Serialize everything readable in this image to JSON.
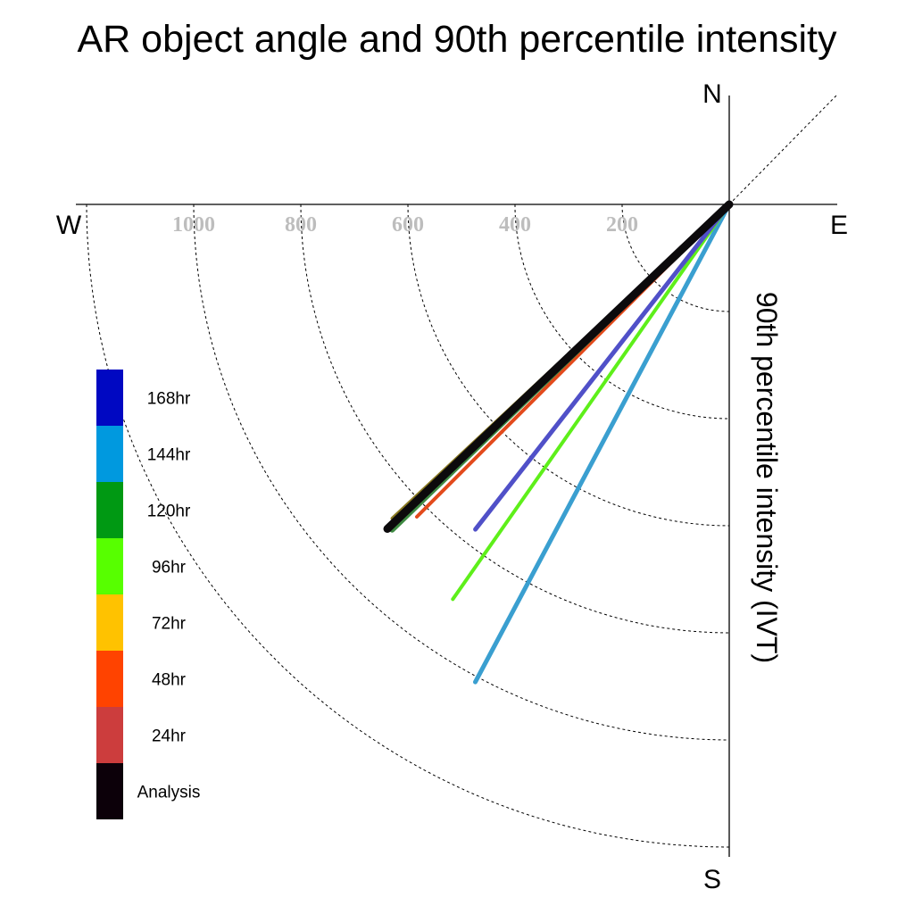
{
  "chart_data": {
    "type": "polar-vector",
    "title": "AR object angle and 90th percentile intensity",
    "ylabel": "90th percentile intensity (IVT)",
    "compass": {
      "north": "N",
      "south": "S",
      "east": "E",
      "west": "W"
    },
    "radial_ticks": [
      200,
      400,
      600,
      800,
      1000
    ],
    "radial_tick_labels": [
      "200",
      "400",
      "600",
      "800",
      "1000"
    ],
    "rmax": 1200,
    "legend": [
      {
        "label": "168hr",
        "color": "#0008c2"
      },
      {
        "label": "144hr",
        "color": "#0099df"
      },
      {
        "label": "120hr",
        "color": "#009913"
      },
      {
        "label": "96hr",
        "color": "#57ff00"
      },
      {
        "label": "72hr",
        "color": "#ffc200"
      },
      {
        "label": "48hr",
        "color": "#ff4300"
      },
      {
        "label": "24hr",
        "color": "#cc3d3d"
      },
      {
        "label": "Analysis",
        "color": "#0c0009"
      }
    ],
    "series": [
      {
        "name": "144hr",
        "color": "#3a9fd0",
        "angle_deg": 208,
        "magnitude": 1010,
        "width": 5
      },
      {
        "name": "96hr",
        "color": "#5eef1a",
        "angle_deg": 215,
        "magnitude": 900,
        "width": 4
      },
      {
        "name": "168hr",
        "color": "#5050c8",
        "angle_deg": 218,
        "magnitude": 770,
        "width": 5
      },
      {
        "name": "48hr",
        "color": "#e34a1c",
        "angle_deg": 225,
        "magnitude": 825,
        "width": 4
      },
      {
        "name": "72hr",
        "color": "#8a7a22",
        "angle_deg": 227,
        "magnitude": 860,
        "width": 4
      },
      {
        "name": "120hr",
        "color": "#3f8a43",
        "angle_deg": 226,
        "magnitude": 875,
        "width": 6
      },
      {
        "name": "Analysis",
        "color": "#0c0a0c",
        "angle_deg": 226.5,
        "magnitude": 880,
        "width": 9
      }
    ]
  }
}
